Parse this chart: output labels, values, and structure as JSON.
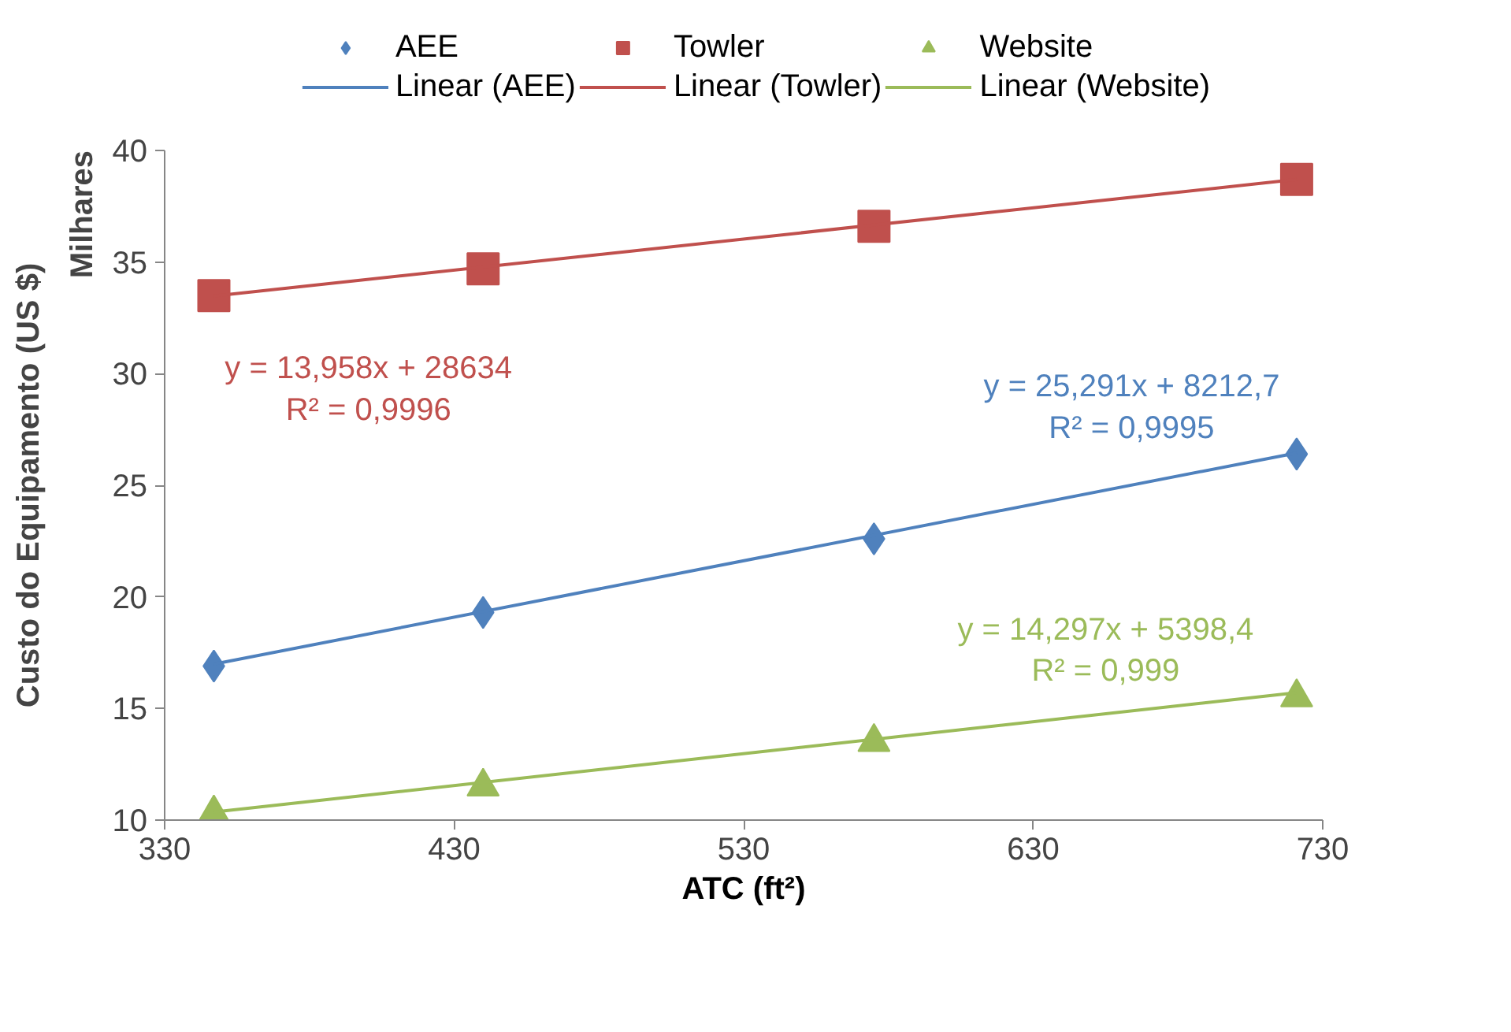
{
  "chart_data": {
    "type": "scatter",
    "xlabel": "ATC (ft²)",
    "ylabel": "Custo do Equipamento (US $)",
    "xlim": [
      330,
      730
    ],
    "xticks": [
      330,
      430,
      530,
      630,
      730
    ],
    "ylim": [
      10,
      40
    ],
    "yticks": [
      10,
      15,
      20,
      25,
      30,
      35,
      40
    ],
    "grid": false,
    "legend": "top",
    "series": [
      {
        "name": "AEE",
        "color": "#4f81bd",
        "marker": "diamond",
        "x": [
          347,
          440,
          575,
          721
        ],
        "values": [
          16.9,
          19.3,
          22.6,
          26.4
        ]
      },
      {
        "name": "Towler",
        "color": "#c0504d",
        "marker": "square",
        "x": [
          347,
          440,
          575,
          721
        ],
        "values": [
          33.5,
          34.7,
          36.6,
          38.7
        ]
      },
      {
        "name": "Website",
        "color": "#9bbb59",
        "marker": "triangle",
        "x": [
          347,
          440,
          575,
          721
        ],
        "values": [
          10.3,
          11.5,
          13.5,
          15.5
        ]
      },
      {
        "name": "Linear (AEE)",
        "type": "line",
        "color": "#4f81bd",
        "x": [
          347,
          721
        ],
        "values": [
          16.99,
          26.45
        ]
      },
      {
        "name": "Linear (Towler)",
        "type": "line",
        "color": "#c0504d",
        "x": [
          347,
          721
        ],
        "values": [
          33.48,
          38.7
        ]
      },
      {
        "name": "Linear (Website)",
        "type": "line",
        "color": "#9bbb59",
        "x": [
          347,
          721
        ],
        "values": [
          10.36,
          15.71
        ]
      }
    ],
    "annotations": [
      "y = 25,291x + 8212,7\nR² = 0,9995",
      "y = 13,958x + 28634\nR² = 0,9996",
      "y = 14,297x + 5398,4\nR² = 0,999",
      "Milhares"
    ]
  }
}
